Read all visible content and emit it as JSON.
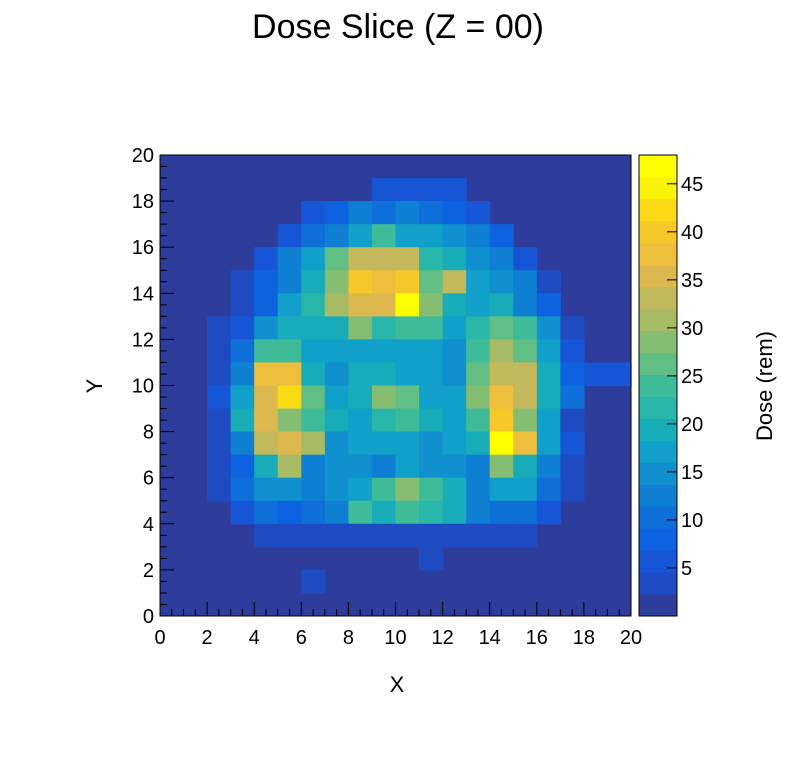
{
  "chart_data": {
    "type": "heatmap",
    "title": "Dose Slice (Z = 00)",
    "xlabel": "X",
    "ylabel": "Y",
    "colorbar_label": "Dose (rem)",
    "xlim": [
      0,
      20
    ],
    "ylim": [
      0,
      20
    ],
    "zlim": [
      0,
      48
    ],
    "x_ticks": [
      "0",
      "2",
      "4",
      "6",
      "8",
      "10",
      "12",
      "14",
      "16",
      "18",
      "20"
    ],
    "y_ticks": [
      "0",
      "2",
      "4",
      "6",
      "8",
      "10",
      "12",
      "14",
      "16",
      "18",
      "20"
    ],
    "colorbar_ticks": [
      "5",
      "10",
      "15",
      "20",
      "25",
      "30",
      "35",
      "40",
      "45"
    ],
    "colorbar_tick_values": [
      5,
      10,
      15,
      20,
      25,
      30,
      35,
      40,
      45
    ],
    "grid_note": "rows listed from y=19 (top) to y=0 (bottom); columns x=0..19; dose values",
    "values": [
      [
        0,
        0,
        0,
        0,
        0,
        0,
        0,
        0,
        0,
        0,
        0,
        0,
        0,
        0,
        0,
        0,
        0,
        0,
        0,
        0
      ],
      [
        0,
        0,
        0,
        0,
        0,
        0,
        0,
        0,
        0,
        6,
        6,
        6,
        6,
        0,
        0,
        0,
        0,
        0,
        0,
        0
      ],
      [
        0,
        0,
        0,
        0,
        0,
        0,
        6,
        8,
        12,
        10,
        12,
        11,
        9,
        7,
        0,
        0,
        0,
        0,
        0,
        0
      ],
      [
        0,
        0,
        0,
        0,
        0,
        7,
        10,
        14,
        17,
        26,
        18,
        17,
        16,
        13,
        8,
        0,
        0,
        0,
        0,
        0
      ],
      [
        0,
        0,
        0,
        0,
        6,
        13,
        17,
        28,
        34,
        34,
        34,
        22,
        20,
        15,
        14,
        6,
        0,
        0,
        0,
        0
      ],
      [
        0,
        0,
        0,
        3,
        8,
        14,
        20,
        30,
        43,
        40,
        42,
        28,
        35,
        18,
        15,
        14,
        4,
        0,
        0,
        0
      ],
      [
        0,
        0,
        0,
        4,
        9,
        18,
        22,
        32,
        36,
        36,
        48,
        30,
        21,
        18,
        20,
        12,
        9,
        0,
        0,
        0
      ],
      [
        0,
        0,
        4,
        6,
        16,
        20,
        20,
        20,
        30,
        23,
        25,
        24,
        17,
        23,
        27,
        26,
        15,
        4,
        0,
        0
      ],
      [
        0,
        0,
        3,
        10,
        25,
        24,
        17,
        17,
        17,
        17,
        17,
        17,
        15,
        26,
        32,
        28,
        17,
        6,
        0,
        0
      ],
      [
        0,
        0,
        3,
        12,
        40,
        40,
        20,
        15,
        20,
        20,
        19,
        17,
        16,
        27,
        35,
        35,
        20,
        9,
        6,
        6
      ],
      [
        0,
        0,
        6,
        18,
        36,
        44,
        27,
        19,
        20,
        31,
        27,
        17,
        17,
        29,
        40,
        35,
        20,
        10,
        0,
        0
      ],
      [
        0,
        0,
        3,
        20,
        38,
        31,
        26,
        20,
        18,
        22,
        26,
        20,
        17,
        24,
        42,
        31,
        17,
        3,
        0,
        0
      ],
      [
        0,
        0,
        3,
        12,
        34,
        37,
        32,
        16,
        19,
        19,
        19,
        15,
        19,
        21,
        48,
        40,
        19,
        6,
        0,
        0
      ],
      [
        0,
        0,
        3,
        9,
        20,
        32,
        13,
        15,
        15,
        14,
        18,
        16,
        16,
        13,
        30,
        20,
        13,
        3,
        0,
        0
      ],
      [
        0,
        0,
        3,
        10,
        16,
        16,
        13,
        16,
        18,
        24,
        30,
        26,
        20,
        14,
        17,
        17,
        10,
        3,
        0,
        0
      ],
      [
        0,
        0,
        0,
        6,
        10,
        9,
        10,
        14,
        26,
        21,
        25,
        23,
        20,
        13,
        11,
        10,
        6,
        0,
        0,
        0
      ],
      [
        0,
        0,
        0,
        0,
        3,
        3,
        3,
        3,
        3,
        4,
        4,
        3,
        4,
        3,
        3,
        3,
        0,
        0,
        0,
        0
      ],
      [
        0,
        0,
        0,
        0,
        0,
        0,
        0,
        0,
        0,
        0,
        0,
        3,
        0,
        0,
        0,
        0,
        0,
        0,
        0,
        0
      ],
      [
        0,
        0,
        0,
        0,
        0,
        0,
        3,
        0,
        0,
        0,
        0,
        0,
        0,
        0,
        0,
        0,
        0,
        0,
        0,
        0
      ],
      [
        0,
        0,
        0,
        0,
        0,
        0,
        0,
        0,
        0,
        0,
        0,
        0,
        0,
        0,
        0,
        0,
        0,
        0,
        0,
        0
      ]
    ],
    "colormap": [
      "#2f3f9b",
      "#1f4bc2",
      "#1656d6",
      "#0d62df",
      "#0f6fd8",
      "#0f7fd3",
      "#1090cf",
      "#10a0c9",
      "#18acb8",
      "#28b6a8",
      "#3ebb98",
      "#61be85",
      "#85bd72",
      "#a6bb63",
      "#c3b85b",
      "#dcb84f",
      "#eebf3d",
      "#f6c82a",
      "#fada15",
      "#fbf20a",
      "#ffff00"
    ],
    "colors": {
      "background": "#2e3d9c",
      "frame": "#000000"
    }
  }
}
